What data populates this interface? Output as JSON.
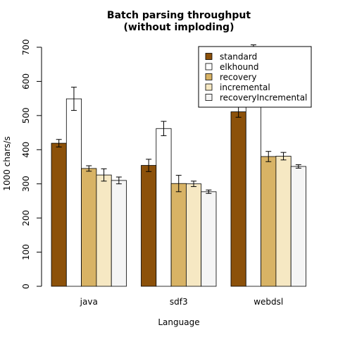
{
  "chart_data": {
    "type": "bar",
    "title": "Batch parsing throughput\n(without imploding)",
    "title_lines": [
      "Batch parsing throughput",
      "(without imploding)"
    ],
    "xlabel": "Language",
    "ylabel": "1000 chars/s",
    "categories": [
      "java",
      "sdf3",
      "webdsl"
    ],
    "ylim": [
      0,
      700
    ],
    "yticks": [
      0,
      100,
      200,
      300,
      400,
      500,
      600,
      700
    ],
    "grid": false,
    "legend_position": "top-right",
    "error_bars": true,
    "series": [
      {
        "name": "standard",
        "color": "#8c510a",
        "values": [
          419,
          354,
          511
        ],
        "errors": [
          11,
          18,
          16
        ]
      },
      {
        "name": "elkhound",
        "color": "#ffffff",
        "values": [
          549,
          462,
          678
        ],
        "errors": [
          34,
          21,
          29
        ]
      },
      {
        "name": "recovery",
        "color": "#d8b365",
        "values": [
          345,
          301,
          380
        ],
        "errors": [
          8,
          24,
          15
        ]
      },
      {
        "name": "incremental",
        "color": "#f6e8c3",
        "values": [
          326,
          300,
          381
        ],
        "errors": [
          18,
          8,
          11
        ]
      },
      {
        "name": "recoveryIncremental",
        "color": "#f5f5f5",
        "values": [
          310,
          277,
          351
        ],
        "errors": [
          10,
          5,
          5
        ]
      }
    ]
  }
}
